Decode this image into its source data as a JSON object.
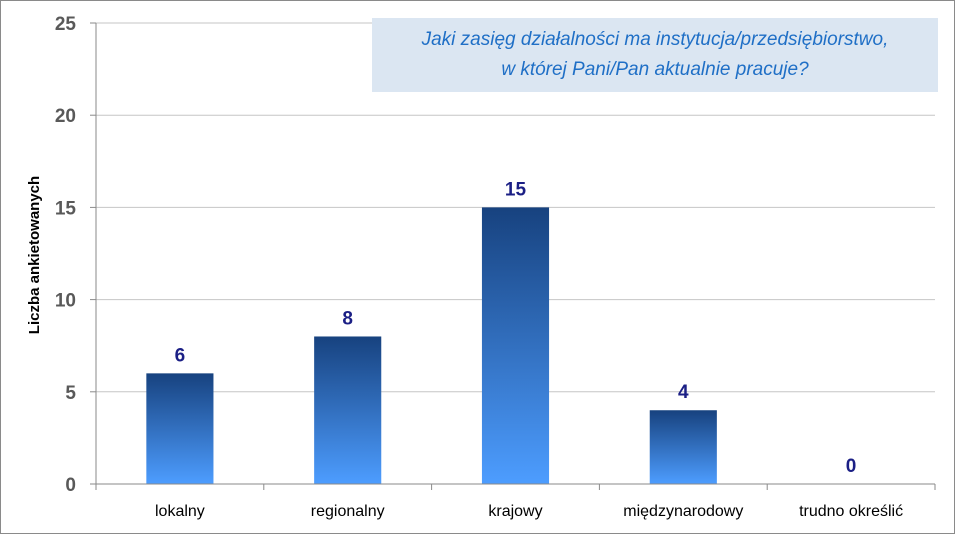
{
  "chart_data": {
    "type": "bar",
    "title_lines": [
      "Jaki zasięg działalności ma instytucja/przedsiębiorstwo,",
      "w której Pani/Pan aktualnie pracuje?"
    ],
    "xlabel": "",
    "ylabel": "Liczba ankietowanych",
    "categories": [
      "lokalny",
      "regionalny",
      "krajowy",
      "międzynarodowy",
      "trudno określić"
    ],
    "values": [
      6,
      8,
      15,
      4,
      0
    ],
    "data_labels": [
      "6",
      "8",
      "15",
      "4",
      "0"
    ],
    "ylim": [
      0,
      25
    ],
    "yticks": [
      "0",
      "5",
      "10",
      "15",
      "20",
      "25"
    ],
    "grid": true,
    "legend": "none"
  },
  "colors": {
    "bar_top": "#17427f",
    "bar_bottom": "#4d9dff",
    "label": "#1b1f85",
    "grid": "#c6c6c6",
    "title_bg": "#dbe6f2",
    "title_text": "#1f6fc6"
  }
}
